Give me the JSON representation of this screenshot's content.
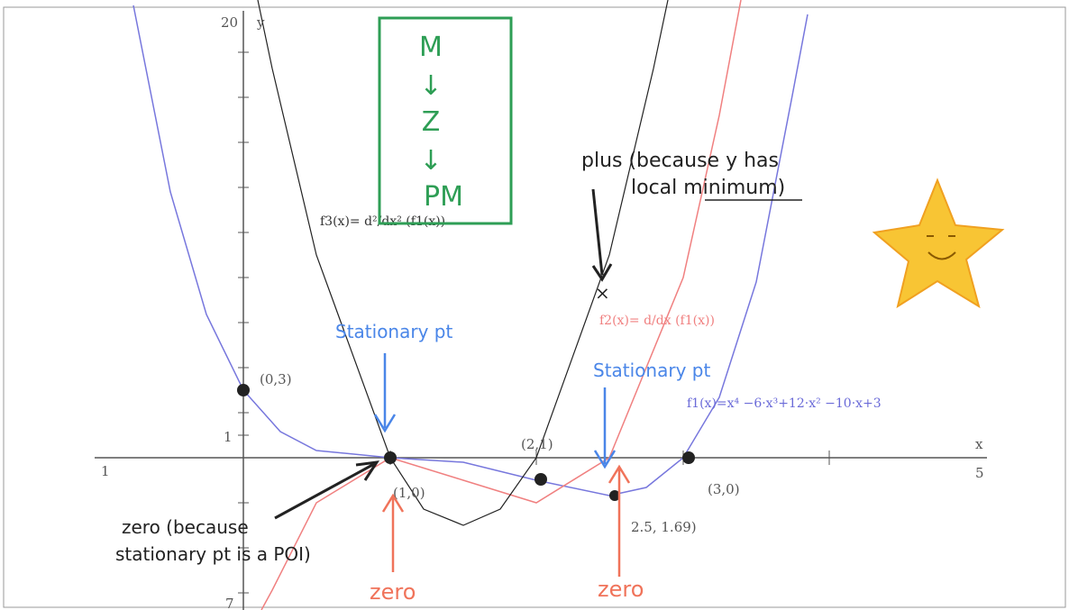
{
  "axis": {
    "y_top": "20",
    "y_name": "y",
    "y_one": "1",
    "y_bottom": "7",
    "x_left": "1",
    "x_name": "x",
    "x_right": "5"
  },
  "points": [
    "(0,3)",
    "(2,1)",
    "(1,0)",
    "(3,0)",
    "2.5, 1.69)"
  ],
  "functions": {
    "f1": "f1(x)=x⁴ −6·x³+12·x² −10·x+3",
    "f2": "f2(x)= d/dx (f1(x))",
    "f3": "f3(x)= d²/dx² (f1(x))"
  },
  "box": [
    "M",
    "↓",
    "Z",
    "↓",
    "PM"
  ],
  "notes": {
    "plus_1": "plus (because y has",
    "plus_2": "local minimum)",
    "cross": "×",
    "stationary_1": "Stationary pt",
    "stationary_2": "Stationary pt",
    "zero_poi_1": "zero (because",
    "zero_poi_2": "stationary pt is a POI)",
    "zero_1": "zero",
    "zero_2": "zero"
  }
}
